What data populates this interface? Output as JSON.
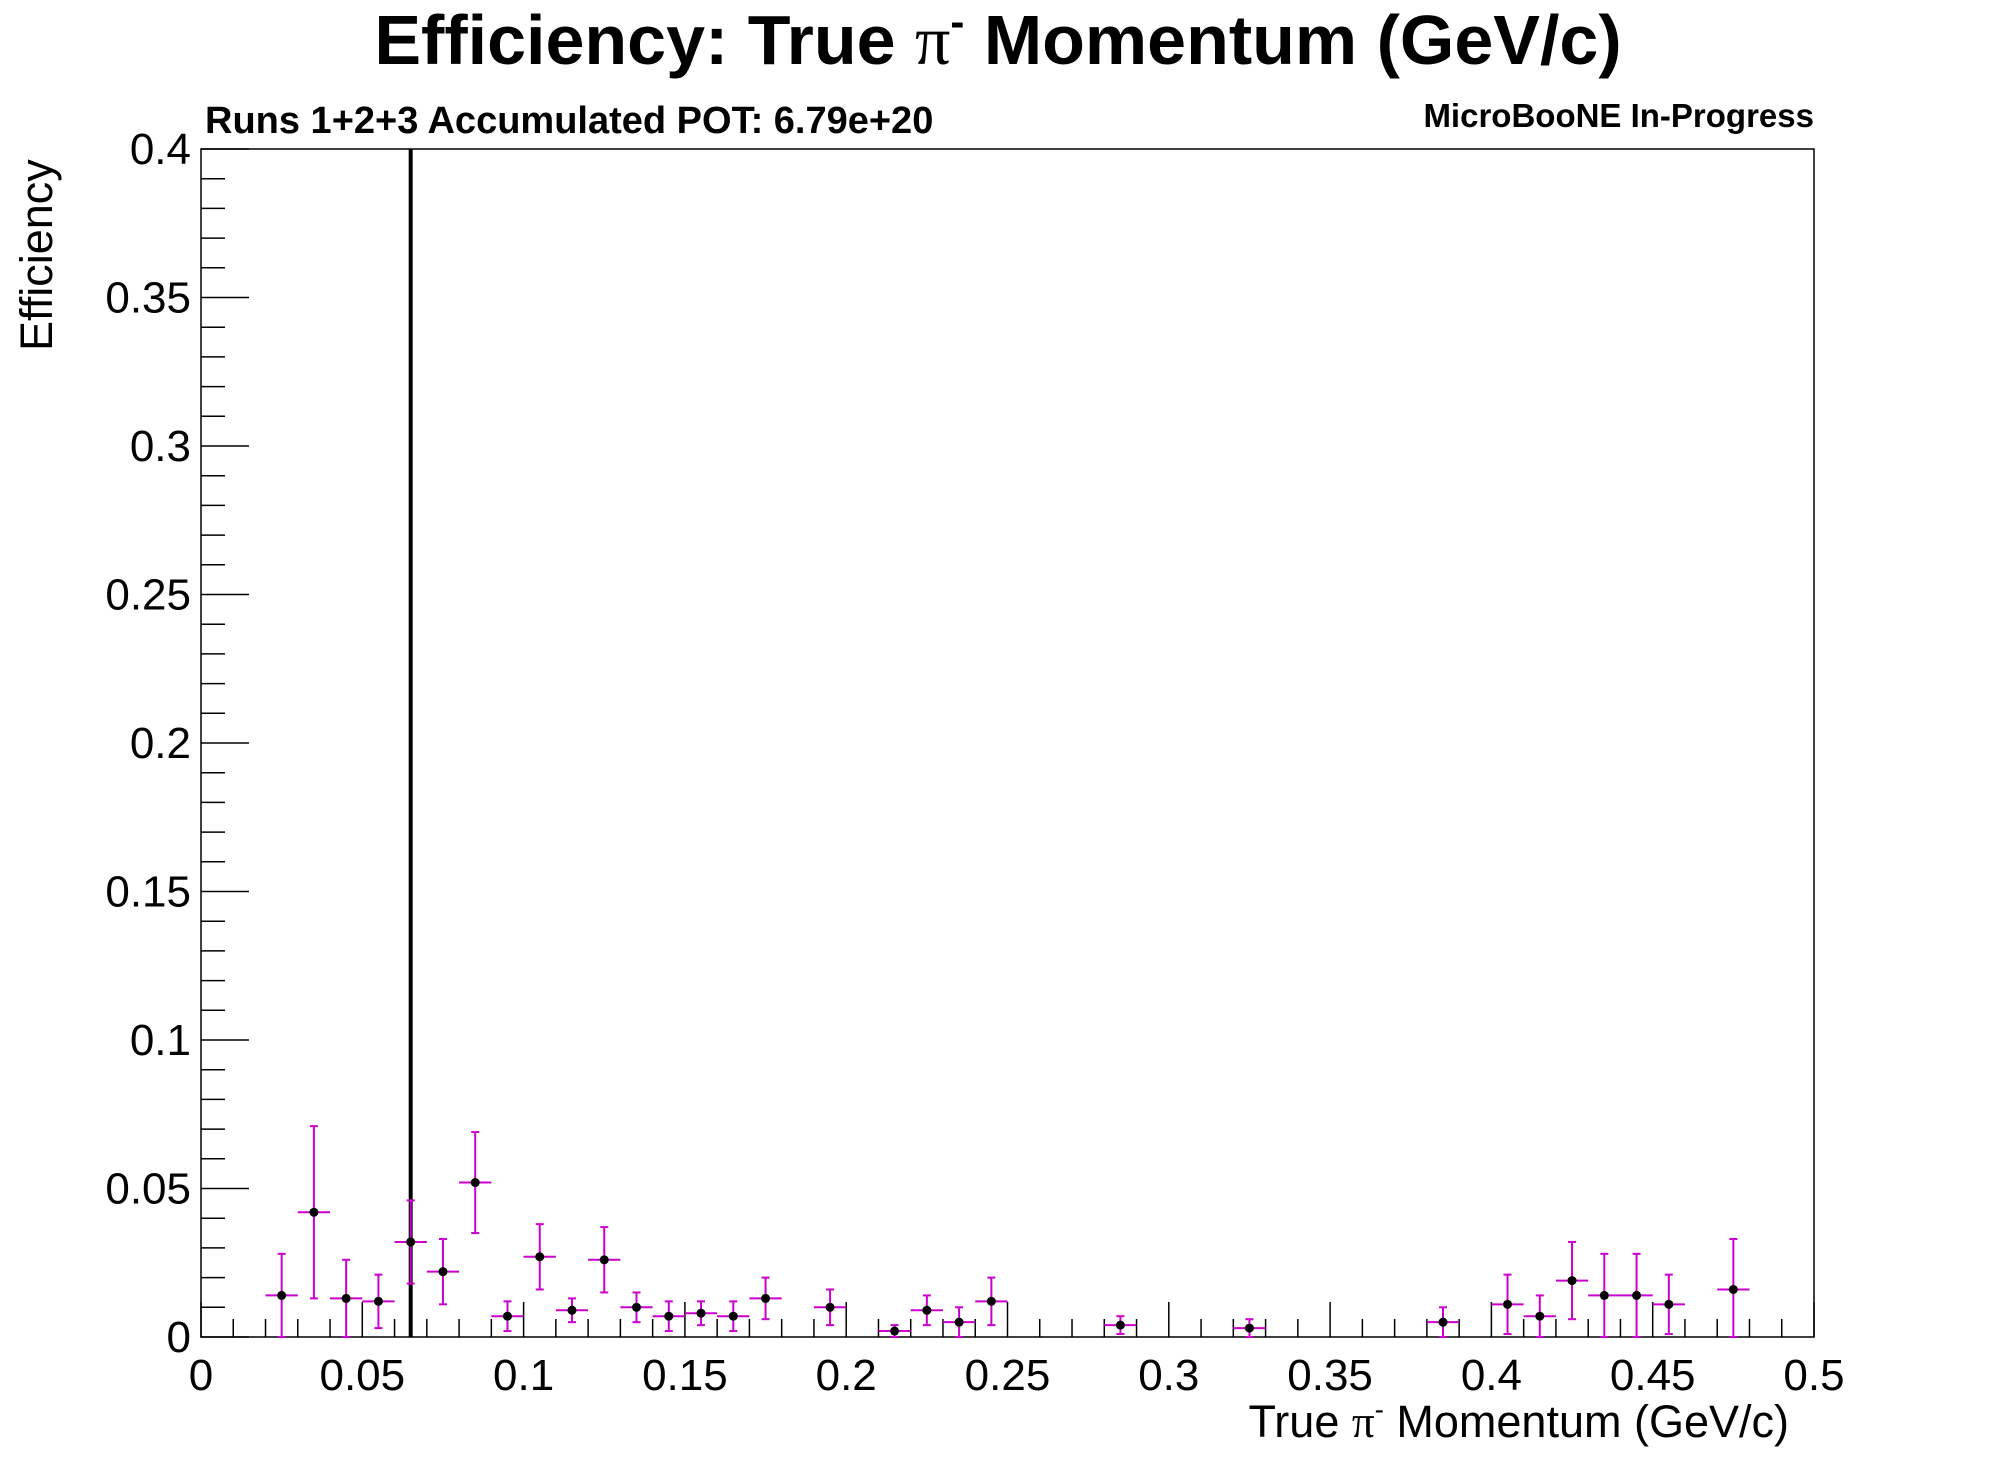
{
  "chart_data": {
    "type": "scatter",
    "title": {
      "before": "Efficiency: True ",
      "symbol": "π",
      "sup": "-",
      "after": " Momentum (GeV/c)"
    },
    "top_left_label": "Runs 1+2+3 Accumulated POT: 6.79e+20",
    "top_right_label": "MicroBooNE In-Progress",
    "xlabel": {
      "before": "True ",
      "symbol": "π",
      "sup": "-",
      "after": " Momentum (GeV/c)"
    },
    "ylabel": "Efficiency",
    "xlim": [
      0,
      0.5
    ],
    "ylim": [
      0,
      0.4
    ],
    "x_ticks": [
      "0",
      "0.05",
      "0.1",
      "0.15",
      "0.2",
      "0.25",
      "0.3",
      "0.35",
      "0.4",
      "0.45",
      "0.5"
    ],
    "y_ticks": [
      "0",
      "0.05",
      "0.1",
      "0.15",
      "0.2",
      "0.25",
      "0.3",
      "0.35",
      "0.4"
    ],
    "grid": false,
    "legend": "none",
    "vertical_line_x": 0.065,
    "bin_half_width": 0.005,
    "colors": {
      "error_bars": "#cc00cc",
      "markers": "#000000",
      "axes": "#000000",
      "vertical_line": "#000000"
    },
    "points": [
      {
        "x": 0.025,
        "y": 0.014,
        "err": 0.014
      },
      {
        "x": 0.035,
        "y": 0.042,
        "err": 0.029
      },
      {
        "x": 0.045,
        "y": 0.013,
        "err": 0.013
      },
      {
        "x": 0.055,
        "y": 0.012,
        "err": 0.009
      },
      {
        "x": 0.065,
        "y": 0.032,
        "err": 0.014
      },
      {
        "x": 0.075,
        "y": 0.022,
        "err": 0.011
      },
      {
        "x": 0.085,
        "y": 0.052,
        "err": 0.017
      },
      {
        "x": 0.095,
        "y": 0.007,
        "err": 0.005
      },
      {
        "x": 0.105,
        "y": 0.027,
        "err": 0.011
      },
      {
        "x": 0.115,
        "y": 0.009,
        "err": 0.004
      },
      {
        "x": 0.125,
        "y": 0.026,
        "err": 0.011
      },
      {
        "x": 0.135,
        "y": 0.01,
        "err": 0.005
      },
      {
        "x": 0.145,
        "y": 0.007,
        "err": 0.005
      },
      {
        "x": 0.155,
        "y": 0.008,
        "err": 0.004
      },
      {
        "x": 0.165,
        "y": 0.007,
        "err": 0.005
      },
      {
        "x": 0.175,
        "y": 0.013,
        "err": 0.007
      },
      {
        "x": 0.195,
        "y": 0.01,
        "err": 0.006
      },
      {
        "x": 0.215,
        "y": 0.002,
        "err": 0.002
      },
      {
        "x": 0.225,
        "y": 0.009,
        "err": 0.005
      },
      {
        "x": 0.235,
        "y": 0.005,
        "err": 0.005
      },
      {
        "x": 0.245,
        "y": 0.012,
        "err": 0.008
      },
      {
        "x": 0.285,
        "y": 0.004,
        "err": 0.003
      },
      {
        "x": 0.325,
        "y": 0.003,
        "err": 0.003
      },
      {
        "x": 0.385,
        "y": 0.005,
        "err": 0.005
      },
      {
        "x": 0.405,
        "y": 0.011,
        "err": 0.01
      },
      {
        "x": 0.415,
        "y": 0.007,
        "err": 0.007
      },
      {
        "x": 0.425,
        "y": 0.019,
        "err": 0.013
      },
      {
        "x": 0.435,
        "y": 0.014,
        "err": 0.014
      },
      {
        "x": 0.445,
        "y": 0.014,
        "err": 0.014
      },
      {
        "x": 0.455,
        "y": 0.011,
        "err": 0.01
      },
      {
        "x": 0.475,
        "y": 0.016,
        "err": 0.017
      }
    ]
  }
}
